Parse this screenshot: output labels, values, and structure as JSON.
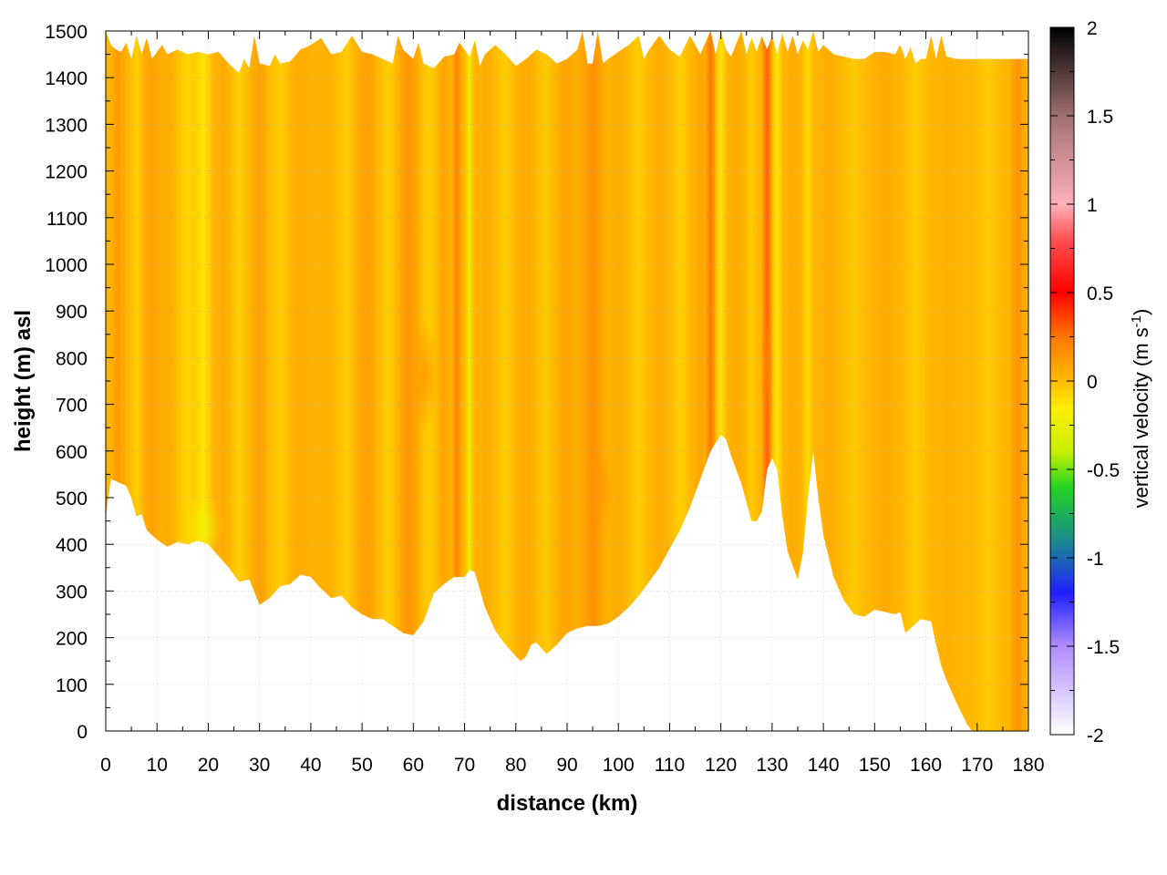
{
  "chart_data": {
    "type": "heatmap",
    "xlabel": "distance (km)",
    "ylabel": "height (m) asl",
    "xlim": [
      0,
      180
    ],
    "ylim": [
      0,
      1500
    ],
    "x_ticks": [
      0,
      10,
      20,
      30,
      40,
      50,
      60,
      70,
      80,
      90,
      100,
      110,
      120,
      130,
      140,
      150,
      160,
      170,
      180
    ],
    "y_ticks": [
      0,
      100,
      200,
      300,
      400,
      500,
      600,
      700,
      800,
      900,
      1000,
      1100,
      1200,
      1300,
      1400,
      1500
    ],
    "grid": true,
    "colorbar": {
      "label": "vertical velocity (m s",
      "label_superscript": "-1",
      "label_suffix": ")",
      "range": [
        -2,
        2
      ],
      "ticks": [
        "2",
        "1.5",
        "1",
        "0.5",
        "0",
        "-0.5",
        "-1",
        "-1.5",
        "-2"
      ],
      "stops": [
        {
          "value": -2.0,
          "color": "#ffffff"
        },
        {
          "value": -1.5,
          "color": "#b08cff"
        },
        {
          "value": -1.2,
          "color": "#2020ff"
        },
        {
          "value": -0.9,
          "color": "#1a8c8c"
        },
        {
          "value": -0.6,
          "color": "#22d422"
        },
        {
          "value": -0.4,
          "color": "#c8f000"
        },
        {
          "value": -0.15,
          "color": "#ffee00"
        },
        {
          "value": 0.0,
          "color": "#ffbb00"
        },
        {
          "value": 0.25,
          "color": "#ff7700"
        },
        {
          "value": 0.5,
          "color": "#ff0000"
        },
        {
          "value": 0.8,
          "color": "#ff5050"
        },
        {
          "value": 1.0,
          "color": "#ffb0b8"
        },
        {
          "value": 1.5,
          "color": "#a07070"
        },
        {
          "value": 2.0,
          "color": "#000000"
        }
      ]
    },
    "background_velocity": 0.02,
    "terrain": [
      [
        0,
        460
      ],
      [
        1,
        540
      ],
      [
        3,
        530
      ],
      [
        4,
        525
      ],
      [
        5,
        500
      ],
      [
        6,
        460
      ],
      [
        7,
        465
      ],
      [
        8,
        430
      ],
      [
        10,
        410
      ],
      [
        12,
        395
      ],
      [
        14,
        405
      ],
      [
        16,
        400
      ],
      [
        18,
        408
      ],
      [
        20,
        400
      ],
      [
        22,
        375
      ],
      [
        24,
        350
      ],
      [
        26,
        320
      ],
      [
        28,
        325
      ],
      [
        30,
        270
      ],
      [
        32,
        285
      ],
      [
        34,
        310
      ],
      [
        36,
        315
      ],
      [
        38,
        335
      ],
      [
        40,
        330
      ],
      [
        42,
        305
      ],
      [
        44,
        285
      ],
      [
        46,
        290
      ],
      [
        48,
        265
      ],
      [
        50,
        250
      ],
      [
        52,
        240
      ],
      [
        54,
        240
      ],
      [
        56,
        225
      ],
      [
        58,
        210
      ],
      [
        60,
        205
      ],
      [
        62,
        235
      ],
      [
        64,
        295
      ],
      [
        66,
        315
      ],
      [
        68,
        330
      ],
      [
        70,
        330
      ],
      [
        71,
        345
      ],
      [
        72,
        340
      ],
      [
        74,
        265
      ],
      [
        76,
        215
      ],
      [
        78,
        185
      ],
      [
        80,
        160
      ],
      [
        81,
        150
      ],
      [
        82,
        160
      ],
      [
        83,
        185
      ],
      [
        84,
        190
      ],
      [
        86,
        165
      ],
      [
        88,
        185
      ],
      [
        90,
        210
      ],
      [
        92,
        220
      ],
      [
        94,
        225
      ],
      [
        96,
        225
      ],
      [
        98,
        230
      ],
      [
        100,
        245
      ],
      [
        102,
        265
      ],
      [
        104,
        290
      ],
      [
        106,
        320
      ],
      [
        108,
        350
      ],
      [
        110,
        390
      ],
      [
        112,
        430
      ],
      [
        114,
        480
      ],
      [
        116,
        540
      ],
      [
        118,
        600
      ],
      [
        120,
        635
      ],
      [
        121,
        625
      ],
      [
        122,
        590
      ],
      [
        124,
        530
      ],
      [
        126,
        450
      ],
      [
        127,
        450
      ],
      [
        128,
        470
      ],
      [
        129,
        560
      ],
      [
        130,
        585
      ],
      [
        131,
        560
      ],
      [
        132,
        460
      ],
      [
        133,
        385
      ],
      [
        135,
        325
      ],
      [
        136,
        380
      ],
      [
        137,
        500
      ],
      [
        138,
        600
      ],
      [
        139,
        500
      ],
      [
        140,
        420
      ],
      [
        142,
        330
      ],
      [
        144,
        280
      ],
      [
        146,
        250
      ],
      [
        148,
        245
      ],
      [
        150,
        260
      ],
      [
        152,
        255
      ],
      [
        154,
        250
      ],
      [
        155,
        255
      ],
      [
        156,
        210
      ],
      [
        158,
        230
      ],
      [
        159,
        240
      ],
      [
        161,
        235
      ],
      [
        162,
        185
      ],
      [
        163,
        140
      ],
      [
        164,
        110
      ],
      [
        166,
        60
      ],
      [
        168,
        15
      ],
      [
        169,
        0
      ],
      [
        180,
        0
      ]
    ],
    "top_edge": [
      [
        0,
        1500
      ],
      [
        1,
        1470
      ],
      [
        2,
        1460
      ],
      [
        3,
        1455
      ],
      [
        4,
        1475
      ],
      [
        5,
        1440
      ],
      [
        6,
        1490
      ],
      [
        7,
        1450
      ],
      [
        8,
        1485
      ],
      [
        9,
        1440
      ],
      [
        10,
        1455
      ],
      [
        11,
        1470
      ],
      [
        12,
        1450
      ],
      [
        14,
        1460
      ],
      [
        16,
        1450
      ],
      [
        18,
        1455
      ],
      [
        20,
        1450
      ],
      [
        22,
        1455
      ],
      [
        24,
        1430
      ],
      [
        26,
        1410
      ],
      [
        27,
        1440
      ],
      [
        28,
        1420
      ],
      [
        29,
        1490
      ],
      [
        30,
        1430
      ],
      [
        32,
        1425
      ],
      [
        33,
        1450
      ],
      [
        34,
        1430
      ],
      [
        36,
        1435
      ],
      [
        38,
        1460
      ],
      [
        40,
        1470
      ],
      [
        42,
        1485
      ],
      [
        44,
        1450
      ],
      [
        46,
        1455
      ],
      [
        48,
        1490
      ],
      [
        50,
        1455
      ],
      [
        52,
        1450
      ],
      [
        54,
        1440
      ],
      [
        56,
        1430
      ],
      [
        57,
        1490
      ],
      [
        58,
        1460
      ],
      [
        60,
        1440
      ],
      [
        61,
        1475
      ],
      [
        62,
        1430
      ],
      [
        64,
        1420
      ],
      [
        66,
        1445
      ],
      [
        68,
        1450
      ],
      [
        69,
        1475
      ],
      [
        70,
        1460
      ],
      [
        71,
        1445
      ],
      [
        72,
        1480
      ],
      [
        73,
        1425
      ],
      [
        74,
        1450
      ],
      [
        76,
        1470
      ],
      [
        78,
        1450
      ],
      [
        80,
        1425
      ],
      [
        82,
        1440
      ],
      [
        84,
        1460
      ],
      [
        86,
        1450
      ],
      [
        88,
        1430
      ],
      [
        90,
        1440
      ],
      [
        92,
        1460
      ],
      [
        93,
        1500
      ],
      [
        94,
        1430
      ],
      [
        95,
        1430
      ],
      [
        96,
        1500
      ],
      [
        97,
        1430
      ],
      [
        98,
        1440
      ],
      [
        100,
        1455
      ],
      [
        102,
        1470
      ],
      [
        104,
        1490
      ],
      [
        105,
        1440
      ],
      [
        106,
        1460
      ],
      [
        108,
        1490
      ],
      [
        110,
        1460
      ],
      [
        112,
        1445
      ],
      [
        114,
        1490
      ],
      [
        116,
        1450
      ],
      [
        118,
        1500
      ],
      [
        119,
        1450
      ],
      [
        120,
        1500
      ],
      [
        121,
        1460
      ],
      [
        122,
        1445
      ],
      [
        124,
        1500
      ],
      [
        125,
        1450
      ],
      [
        126,
        1485
      ],
      [
        127,
        1455
      ],
      [
        128,
        1490
      ],
      [
        129,
        1460
      ],
      [
        130,
        1490
      ],
      [
        131,
        1450
      ],
      [
        132,
        1495
      ],
      [
        133,
        1455
      ],
      [
        134,
        1490
      ],
      [
        135,
        1450
      ],
      [
        136,
        1480
      ],
      [
        137,
        1460
      ],
      [
        138,
        1500
      ],
      [
        139,
        1455
      ],
      [
        140,
        1470
      ],
      [
        142,
        1450
      ],
      [
        144,
        1445
      ],
      [
        146,
        1440
      ],
      [
        148,
        1440
      ],
      [
        150,
        1455
      ],
      [
        152,
        1455
      ],
      [
        154,
        1450
      ],
      [
        155,
        1470
      ],
      [
        156,
        1440
      ],
      [
        157,
        1465
      ],
      [
        158,
        1430
      ],
      [
        159,
        1440
      ],
      [
        160,
        1440
      ],
      [
        161,
        1490
      ],
      [
        162,
        1440
      ],
      [
        163,
        1490
      ],
      [
        164,
        1445
      ],
      [
        166,
        1440
      ],
      [
        168,
        1440
      ],
      [
        170,
        1440
      ],
      [
        180,
        1440
      ]
    ],
    "velocity_bands": [
      {
        "x": 2.5,
        "w": 1.2,
        "v": 0.12
      },
      {
        "x": 6,
        "w": 1.0,
        "v": -0.06
      },
      {
        "x": 9,
        "w": 1.5,
        "v": 0.1
      },
      {
        "x": 12,
        "w": 1.5,
        "v": 0.06
      },
      {
        "x": 16,
        "w": 2.0,
        "v": -0.08
      },
      {
        "x": 19,
        "w": 1.5,
        "v": -0.12
      },
      {
        "x": 23,
        "w": 2.0,
        "v": 0.05
      },
      {
        "x": 26,
        "w": 1.5,
        "v": -0.06
      },
      {
        "x": 30,
        "w": 1.5,
        "v": 0.1
      },
      {
        "x": 34,
        "w": 2.0,
        "v": -0.05
      },
      {
        "x": 38,
        "w": 2.0,
        "v": 0.06
      },
      {
        "x": 43,
        "w": 2.5,
        "v": 0.04
      },
      {
        "x": 47,
        "w": 2.0,
        "v": -0.05
      },
      {
        "x": 51,
        "w": 2.5,
        "v": 0.1
      },
      {
        "x": 55,
        "w": 2.0,
        "v": -0.05
      },
      {
        "x": 59,
        "w": 2.0,
        "v": 0.14
      },
      {
        "x": 63,
        "w": 1.5,
        "v": -0.05
      },
      {
        "x": 66,
        "w": 1.0,
        "v": 0.08
      },
      {
        "x": 68.5,
        "w": 0.8,
        "v": 0.2
      },
      {
        "x": 71,
        "w": 0.7,
        "v": -0.22
      },
      {
        "x": 74,
        "w": 2.0,
        "v": 0.05
      },
      {
        "x": 78,
        "w": 2.0,
        "v": -0.05
      },
      {
        "x": 82,
        "w": 2.5,
        "v": 0.06
      },
      {
        "x": 86,
        "w": 2.0,
        "v": -0.04
      },
      {
        "x": 90,
        "w": 2.5,
        "v": 0.08
      },
      {
        "x": 95,
        "w": 2.0,
        "v": 0.16
      },
      {
        "x": 100,
        "w": 2.0,
        "v": 0.06
      },
      {
        "x": 104,
        "w": 2.0,
        "v": -0.05
      },
      {
        "x": 108,
        "w": 2.0,
        "v": 0.05
      },
      {
        "x": 112,
        "w": 1.5,
        "v": -0.06
      },
      {
        "x": 116,
        "w": 1.0,
        "v": 0.08
      },
      {
        "x": 118,
        "w": 0.8,
        "v": 0.25
      },
      {
        "x": 120,
        "w": 0.8,
        "v": -0.12
      },
      {
        "x": 123,
        "w": 1.5,
        "v": 0.06
      },
      {
        "x": 126,
        "w": 1.0,
        "v": -0.05
      },
      {
        "x": 129,
        "w": 0.8,
        "v": 0.3
      },
      {
        "x": 131,
        "w": 0.8,
        "v": -0.12
      },
      {
        "x": 134,
        "w": 1.2,
        "v": 0.06
      },
      {
        "x": 137,
        "w": 0.8,
        "v": -0.1
      },
      {
        "x": 141,
        "w": 2.0,
        "v": 0.05
      },
      {
        "x": 146,
        "w": 2.0,
        "v": -0.04
      },
      {
        "x": 152,
        "w": 2.0,
        "v": 0.06
      },
      {
        "x": 158,
        "w": 2.0,
        "v": -0.05
      },
      {
        "x": 164,
        "w": 2.0,
        "v": 0.04
      },
      {
        "x": 172,
        "w": 2.5,
        "v": -0.04
      },
      {
        "x": 178,
        "w": 1.2,
        "v": 0.15
      }
    ],
    "blobs": [
      {
        "x": 19,
        "y": 440,
        "rx": 3.5,
        "ry": 70,
        "v": -0.22
      },
      {
        "x": 62,
        "y": 760,
        "rx": 3,
        "ry": 120,
        "v": 0.12
      },
      {
        "x": 96,
        "y": 520,
        "rx": 3,
        "ry": 90,
        "v": 0.14
      },
      {
        "x": 129,
        "y": 780,
        "rx": 1.2,
        "ry": 120,
        "v": 0.2
      }
    ]
  }
}
